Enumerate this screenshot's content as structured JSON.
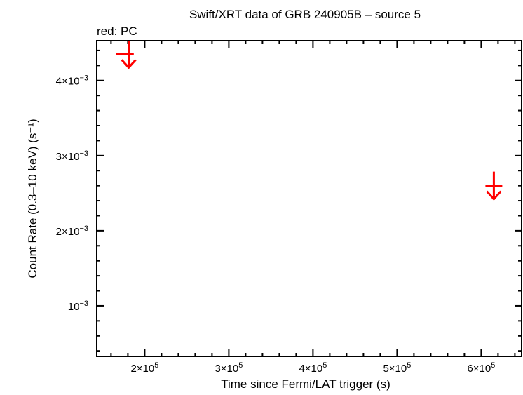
{
  "chart_data": {
    "type": "scatter",
    "title": "Swift/XRT data of GRB 240905B – source 5",
    "subtitle": "red: PC",
    "xlabel": "Time since Fermi/LAT trigger (s)",
    "ylabel": "Count Rate (0.3–10 keV) (s⁻¹)",
    "xlim": [
      143000,
      648000
    ],
    "ylim": [
      0.000327,
      0.00453
    ],
    "x_scale": "linear",
    "y_scale": "linear",
    "grid": false,
    "x_ticks": [
      {
        "value": 200000,
        "mant": "2",
        "exp": "5"
      },
      {
        "value": 300000,
        "mant": "3",
        "exp": "5"
      },
      {
        "value": 400000,
        "mant": "4",
        "exp": "5"
      },
      {
        "value": 500000,
        "mant": "5",
        "exp": "5"
      },
      {
        "value": 600000,
        "mant": "6",
        "exp": "5"
      }
    ],
    "y_ticks": [
      {
        "value": 0.001,
        "mant": "",
        "exp": "−3"
      },
      {
        "value": 0.002,
        "mant": "2",
        "exp": "−3"
      },
      {
        "value": 0.003,
        "mant": "3",
        "exp": "−3"
      },
      {
        "value": 0.004,
        "mant": "4",
        "exp": "−3"
      }
    ],
    "series": [
      {
        "name": "PC",
        "color": "#ff0000",
        "marker": "upper-limit-arrow",
        "points": [
          {
            "x": 181000,
            "x_lo": 166000,
            "x_hi": 187000,
            "y": 0.00435,
            "upper_limit": true
          },
          {
            "x": 615000,
            "x_lo": 605000,
            "x_hi": 625000,
            "y": 0.0026,
            "upper_limit": true
          }
        ]
      }
    ]
  }
}
